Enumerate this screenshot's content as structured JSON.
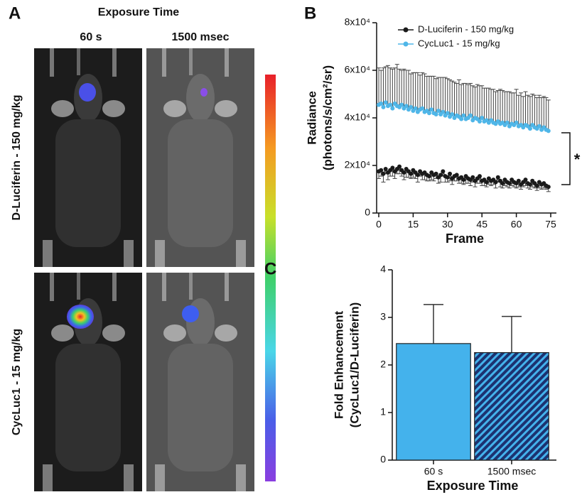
{
  "panel_a": {
    "panel": "A",
    "title": "Exposure Time",
    "columns": [
      "60 s",
      "1500 msec"
    ],
    "rows": [
      "D-Luciferin - 150 mg/kg",
      "CycLuc1 - 15 mg/kg"
    ]
  },
  "chart_data": [
    {
      "panel": "B",
      "type": "line",
      "ylabel": [
        "Radiance",
        "(photons/s/cm²/sr)"
      ],
      "xlabel": "Frame",
      "x": [
        0,
        1,
        2,
        3,
        4,
        5,
        6,
        7,
        8,
        9,
        10,
        11,
        12,
        13,
        14,
        15,
        16,
        17,
        18,
        19,
        20,
        21,
        22,
        23,
        24,
        25,
        26,
        27,
        28,
        29,
        30,
        31,
        32,
        33,
        34,
        35,
        36,
        37,
        38,
        39,
        40,
        41,
        42,
        43,
        44,
        45,
        46,
        47,
        48,
        49,
        50,
        51,
        52,
        53,
        54,
        55,
        56,
        57,
        58,
        59,
        60,
        61,
        62,
        63,
        64,
        65,
        66,
        67,
        68,
        69,
        70,
        71,
        72,
        73,
        74
      ],
      "xlim": [
        0,
        75
      ],
      "xticks": [
        0,
        15,
        30,
        45,
        60,
        75
      ],
      "ylim": [
        0,
        80000
      ],
      "yticks": [
        0,
        {
          "value": 20000,
          "label": "2x10⁴"
        },
        {
          "value": 40000,
          "label": "4x10⁴"
        },
        {
          "value": 60000,
          "label": "6x10⁴"
        },
        {
          "value": 80000,
          "label": "8x10⁴"
        }
      ],
      "series": [
        {
          "name": "D-Luciferin - 150 mg/kg",
          "color": "#1a1a1a",
          "error_direction": "down",
          "values": [
            17500,
            18000,
            16500,
            18500,
            17000,
            18000,
            19000,
            17500,
            18500,
            19500,
            18000,
            17000,
            18500,
            17500,
            16500,
            18000,
            17000,
            16000,
            17500,
            16500,
            17000,
            16000,
            15500,
            17000,
            16000,
            16500,
            15000,
            16000,
            17500,
            15500,
            15000,
            16500,
            14500,
            15500,
            16000,
            14500,
            15000,
            14000,
            15500,
            14500,
            14000,
            15000,
            13500,
            14500,
            15500,
            13500,
            14000,
            13000,
            14500,
            13500,
            14000,
            13000,
            15000,
            13500,
            12500,
            14000,
            13000,
            12500,
            14000,
            13000,
            12500,
            13500,
            12000,
            13000,
            14000,
            12500,
            12000,
            13500,
            12500,
            11500,
            13000,
            12000,
            12500,
            11500,
            11000
          ],
          "errors": [
            3000,
            2500,
            3500,
            2000,
            3000,
            2500,
            3500,
            3000,
            2000,
            3000,
            2500,
            3000,
            3500,
            2500,
            2000,
            3000,
            2500,
            3000,
            2000,
            2500,
            3000,
            2500,
            2000,
            3000,
            2500,
            2000,
            2500,
            3000,
            2000,
            2500,
            2000,
            3000,
            2500,
            2000,
            2500,
            2000,
            2500,
            2000,
            3000,
            2000,
            2500,
            2000,
            2500,
            2000,
            3000,
            2000,
            2500,
            2000,
            2500,
            2000,
            2000,
            2500,
            2000,
            2500,
            2000,
            2500,
            2000,
            2000,
            2500,
            2000,
            2000,
            2500,
            2000,
            2000,
            2500,
            2000,
            2000,
            2500,
            2000,
            2000,
            2500,
            2000,
            2000,
            1500,
            2000
          ]
        },
        {
          "name": "CycLuc1 - 15 mg/kg",
          "color": "#4fb6e8",
          "error_direction": "up",
          "values": [
            45500,
            46000,
            44500,
            46500,
            45000,
            45500,
            44000,
            46000,
            45000,
            44500,
            45500,
            44000,
            45000,
            43500,
            44500,
            43000,
            44000,
            42500,
            43500,
            44000,
            42500,
            43000,
            42000,
            43500,
            42000,
            41500,
            43000,
            41500,
            42500,
            41000,
            42000,
            40500,
            41500,
            40000,
            41000,
            40500,
            39500,
            41000,
            39500,
            40000,
            41000,
            39000,
            40000,
            39500,
            38500,
            40000,
            38500,
            39000,
            38000,
            39000,
            38000,
            37500,
            38500,
            37500,
            38000,
            37000,
            38000,
            36500,
            37500,
            37000,
            38000,
            36500,
            37000,
            36000,
            37000,
            36500,
            35500,
            37000,
            36000,
            35500,
            36500,
            35000,
            36000,
            35000,
            34500
          ],
          "errors": [
            15500,
            14000,
            16500,
            15000,
            17000,
            15500,
            16500,
            15000,
            17500,
            16000,
            14500,
            16500,
            15000,
            16500,
            14000,
            16000,
            15000,
            16500,
            14500,
            15000,
            16000,
            14500,
            15500,
            14000,
            15500,
            15000,
            14000,
            15500,
            14500,
            16000,
            14500,
            15500,
            14000,
            15000,
            13500,
            15500,
            14500,
            13500,
            15000,
            14000,
            13500,
            14500,
            13000,
            14500,
            15000,
            13500,
            14000,
            13500,
            14500,
            13000,
            14000,
            13500,
            13000,
            14500,
            13500,
            14000,
            13000,
            14500,
            13000,
            13500,
            14000,
            13000,
            13500,
            13000,
            14000,
            13000,
            13500,
            13000,
            13500,
            13000,
            13000,
            13500,
            13000,
            13500,
            13000
          ]
        }
      ],
      "annotation": "*"
    },
    {
      "panel": "C",
      "type": "bar",
      "ylabel": [
        "Fold Enhancement",
        "(CycLuc1/D-Luciferin)"
      ],
      "xlabel": "Exposure Time",
      "categories": [
        "60 s",
        "1500 msec"
      ],
      "values": [
        2.45,
        2.26
      ],
      "errors": [
        0.82,
        0.76
      ],
      "colors": [
        "#44b2ec",
        "#1c3270"
      ],
      "hatched": [
        false,
        true
      ],
      "ylim": [
        0,
        4
      ],
      "yticks": [
        0,
        1,
        2,
        3,
        4
      ]
    }
  ]
}
